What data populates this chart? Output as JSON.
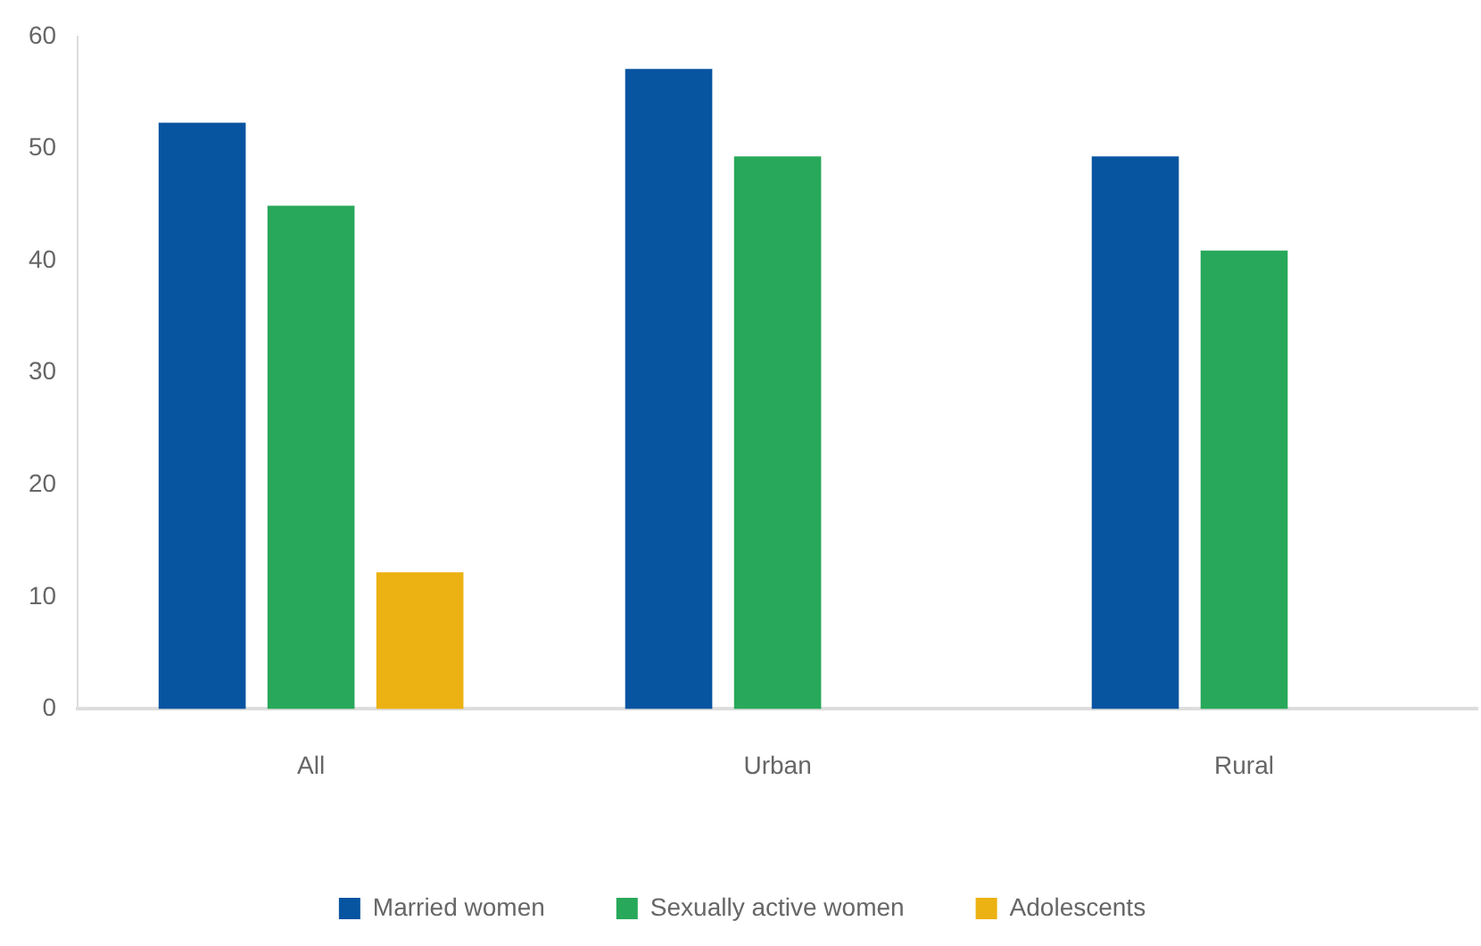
{
  "chart_data": {
    "type": "bar",
    "categories": [
      "All",
      "Urban",
      "Rural"
    ],
    "series": [
      {
        "name": "Married women",
        "color": "#0754a1",
        "values": [
          52.3,
          57.1,
          49.3
        ]
      },
      {
        "name": "Sexually active women",
        "color": "#28a85a",
        "values": [
          44.9,
          49.3,
          40.9
        ]
      },
      {
        "name": "Adolescents",
        "color": "#ecb112",
        "values": [
          12.2,
          null,
          null
        ]
      }
    ],
    "ylim": [
      0,
      60
    ],
    "yticks": [
      0,
      10,
      20,
      30,
      40,
      50,
      60
    ],
    "grid": false,
    "legend": "bottom"
  }
}
